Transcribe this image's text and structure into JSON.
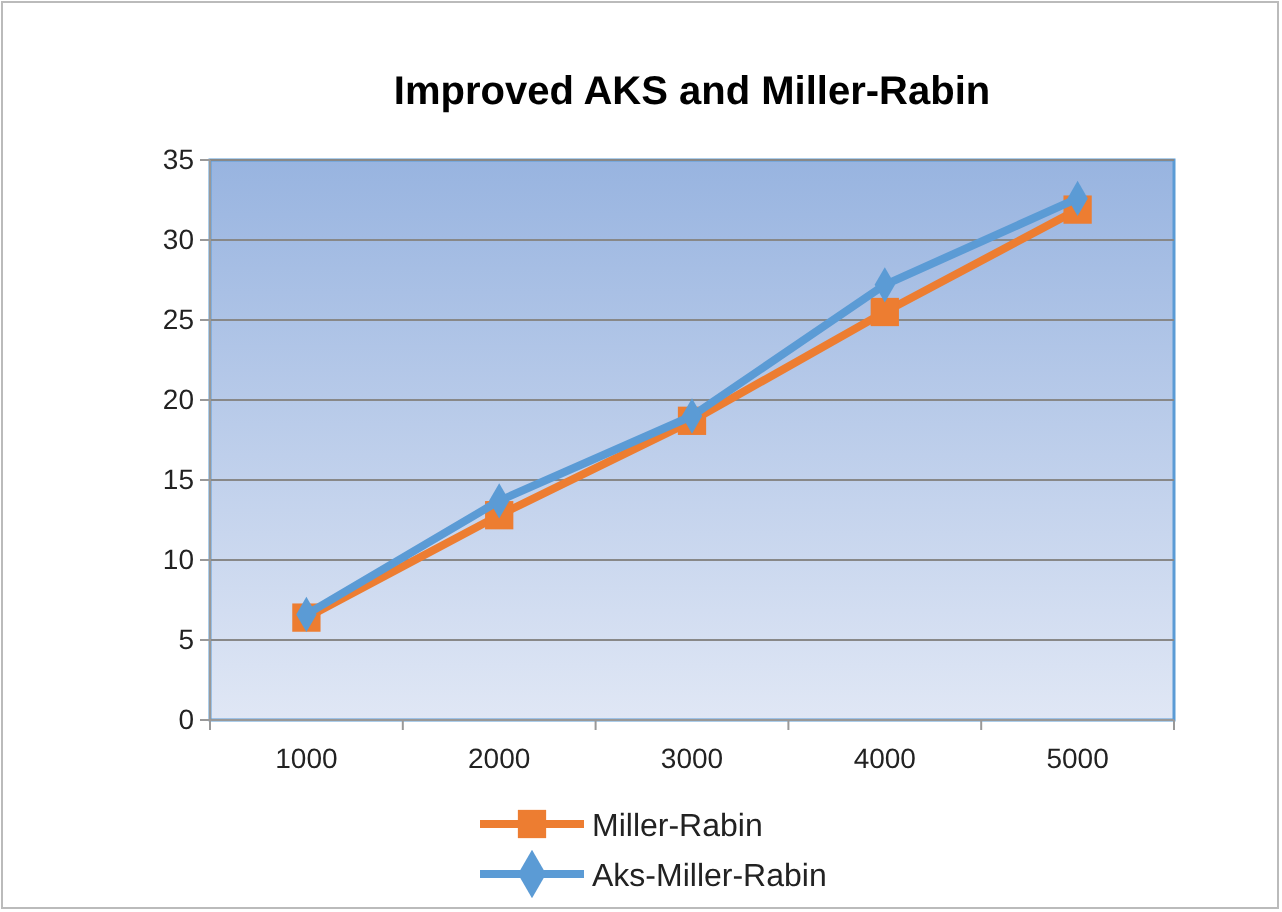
{
  "chart_data": {
    "type": "line",
    "title": "Improved AKS and Miller-Rabin",
    "categories": [
      "1000",
      "2000",
      "3000",
      "4000",
      "5000"
    ],
    "series": [
      {
        "name": "Miller-Rabin",
        "color": "#ed7d31",
        "marker": "square",
        "values": [
          6.4,
          12.8,
          18.7,
          25.5,
          31.9
        ]
      },
      {
        "name": "Aks-Miller-Rabin",
        "color": "#5b9bd5",
        "marker": "diamond",
        "values": [
          6.6,
          13.7,
          19.0,
          27.2,
          32.6
        ]
      }
    ],
    "ylim": [
      0,
      35
    ],
    "yticks": [
      0,
      5,
      10,
      15,
      20,
      25,
      30,
      35
    ],
    "grid": "y",
    "legend": "bottom"
  }
}
